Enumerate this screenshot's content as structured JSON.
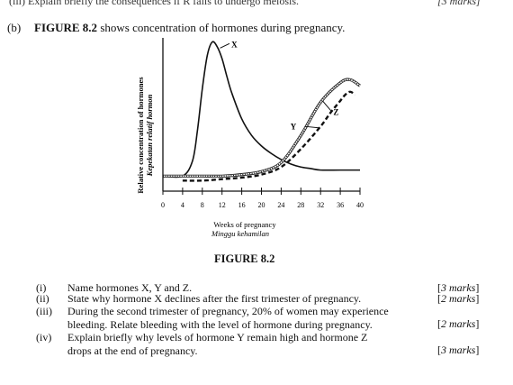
{
  "header": {
    "cut_line": "(iii)   Explain briefly the consequences if R fails to undergo meiosis.",
    "cut_marks": "[3 marks]"
  },
  "part": {
    "label": "(b)",
    "figure_ref": "FIGURE 8.2",
    "intro_rest": " shows concentration of hormones during pregnancy."
  },
  "chart_data": {
    "type": "line",
    "xlabel": "Weeks of pregnancy",
    "xlabel_alt": "Minggu kehamilan",
    "ylabel": "Relative concentration of hormones",
    "ylabel_alt": "Kepekatan relatif hormon",
    "x_ticks": [
      0,
      4,
      8,
      12,
      16,
      20,
      24,
      28,
      32,
      36,
      40
    ],
    "xlim": [
      0,
      40
    ],
    "ylim": [
      0,
      1
    ],
    "series": [
      {
        "name": "X",
        "style": "solid",
        "x": [
          0,
          4,
          6,
          7,
          8,
          9,
          10,
          11,
          12,
          13,
          14,
          16,
          18,
          20,
          22,
          24,
          26,
          28,
          30,
          32,
          36,
          40
        ],
        "y": [
          0.1,
          0.1,
          0.2,
          0.4,
          0.68,
          0.9,
          0.99,
          0.96,
          0.88,
          0.76,
          0.65,
          0.48,
          0.37,
          0.3,
          0.25,
          0.21,
          0.18,
          0.16,
          0.15,
          0.14,
          0.14,
          0.14
        ]
      },
      {
        "name": "Y",
        "style": "dashed",
        "x": [
          4,
          8,
          12,
          16,
          20,
          24,
          28,
          32,
          34,
          36,
          37,
          38,
          39
        ],
        "y": [
          0.07,
          0.07,
          0.08,
          0.09,
          0.11,
          0.16,
          0.28,
          0.43,
          0.52,
          0.6,
          0.64,
          0.66,
          0.64
        ]
      },
      {
        "name": "Z",
        "style": "dotted",
        "x": [
          0,
          4,
          8,
          12,
          16,
          20,
          24,
          28,
          32,
          36,
          38,
          40
        ],
        "y": [
          0.1,
          0.1,
          0.1,
          0.1,
          0.11,
          0.13,
          0.19,
          0.37,
          0.59,
          0.72,
          0.74,
          0.7
        ]
      }
    ]
  },
  "figure": {
    "caption": "FIGURE 8.2"
  },
  "questions": [
    {
      "num": "(i)",
      "text": "Name hormones X, Y and Z.",
      "marks": "3 marks"
    },
    {
      "num": "(ii)",
      "text": "State why hormone X declines after the first trimester of pregnancy.",
      "marks": "2 marks"
    },
    {
      "num": "(iii)",
      "text": "During the second trimester of pregnancy, 20% of women may experience",
      "text2": "bleeding. Relate bleeding with the level of hormone during pregnancy.",
      "marks": "2 marks"
    },
    {
      "num": "(iv)",
      "text": "Explain briefly why levels of hormone Y remain high and hormone Z",
      "text2": "drops at the end of pregnancy.",
      "marks": "3 marks"
    }
  ]
}
